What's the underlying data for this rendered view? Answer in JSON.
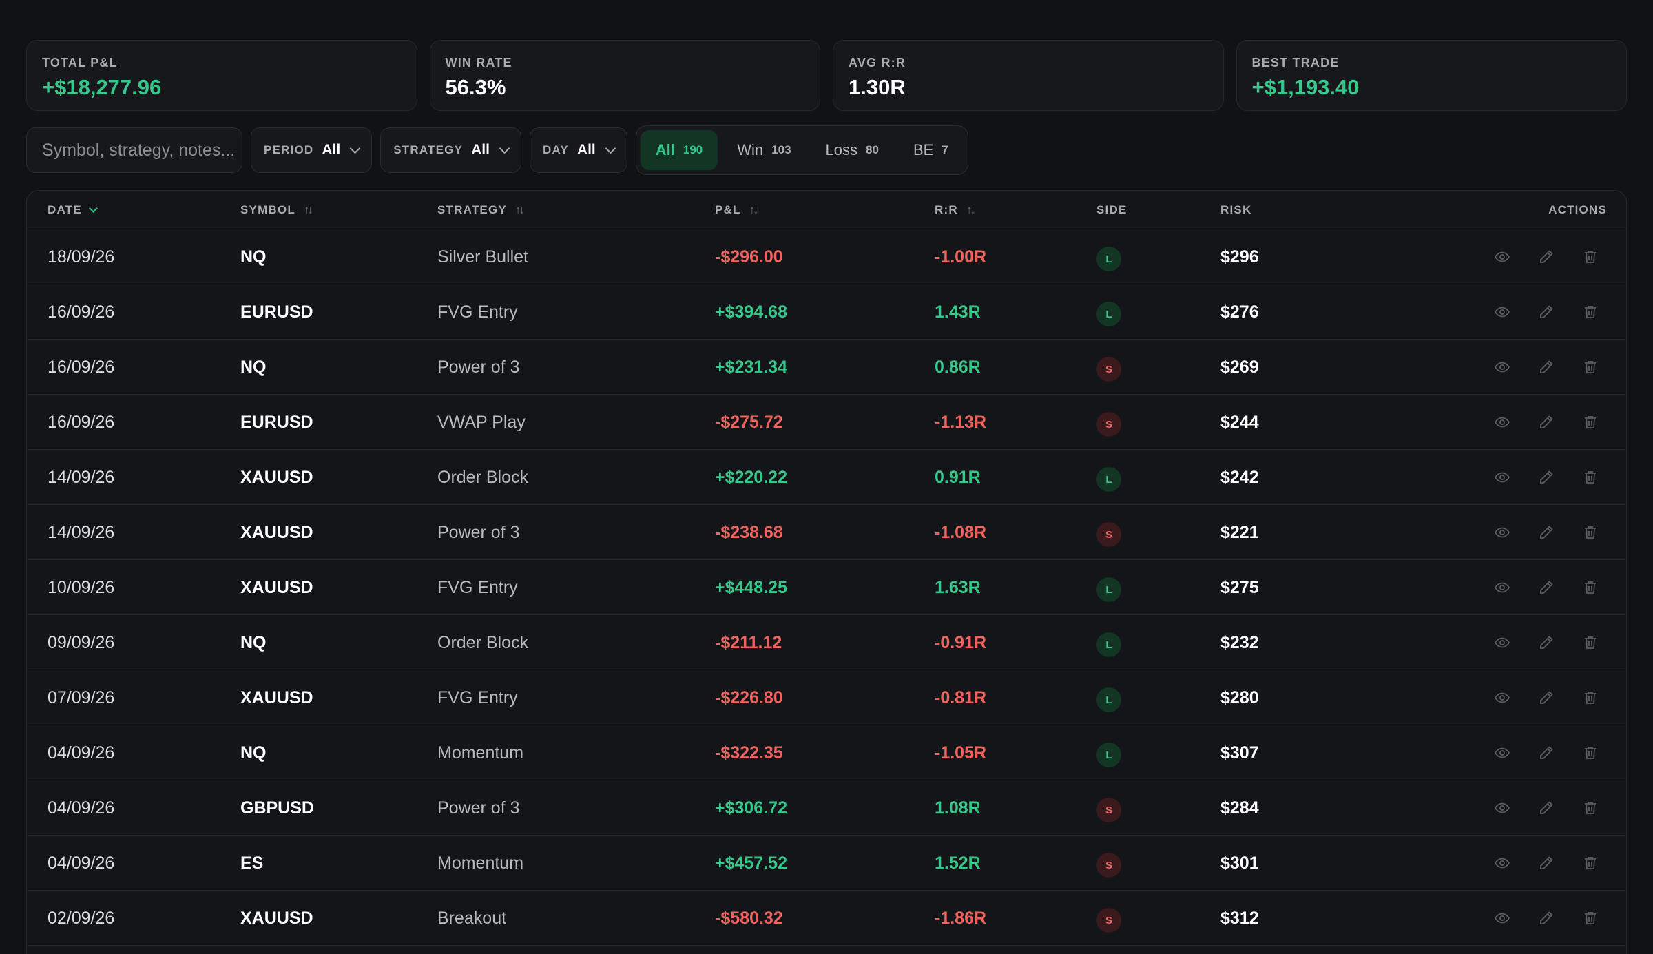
{
  "stats": [
    {
      "label": "TOTAL P&L",
      "value": "+$18,277.96",
      "tone": "pos"
    },
    {
      "label": "WIN RATE",
      "value": "56.3%",
      "tone": "neutral"
    },
    {
      "label": "AVG R:R",
      "value": "1.30R",
      "tone": "neutral"
    },
    {
      "label": "BEST TRADE",
      "value": "+$1,193.40",
      "tone": "pos"
    }
  ],
  "filters": {
    "search_placeholder": "Symbol, strategy, notes...",
    "period": {
      "label": "PERIOD",
      "value": "All"
    },
    "strategy": {
      "label": "STRATEGY",
      "value": "All"
    },
    "day": {
      "label": "DAY",
      "value": "All"
    },
    "outcome": [
      {
        "label": "All",
        "count": "190",
        "active": true
      },
      {
        "label": "Win",
        "count": "103",
        "active": false
      },
      {
        "label": "Loss",
        "count": "80",
        "active": false
      },
      {
        "label": "BE",
        "count": "7",
        "active": false
      }
    ]
  },
  "table": {
    "headers": {
      "date": "DATE",
      "symbol": "SYMBOL",
      "strategy": "STRATEGY",
      "pnl": "P&L",
      "rr": "R:R",
      "side": "SIDE",
      "risk": "RISK",
      "actions": "ACTIONS"
    },
    "rows": [
      {
        "date": "18/09/26",
        "symbol": "NQ",
        "strategy": "Silver Bullet",
        "pnl": "-$296.00",
        "rr": "-1.00R",
        "side": "L",
        "risk": "$296"
      },
      {
        "date": "16/09/26",
        "symbol": "EURUSD",
        "strategy": "FVG Entry",
        "pnl": "+$394.68",
        "rr": "1.43R",
        "side": "L",
        "risk": "$276"
      },
      {
        "date": "16/09/26",
        "symbol": "NQ",
        "strategy": "Power of 3",
        "pnl": "+$231.34",
        "rr": "0.86R",
        "side": "S",
        "risk": "$269"
      },
      {
        "date": "16/09/26",
        "symbol": "EURUSD",
        "strategy": "VWAP Play",
        "pnl": "-$275.72",
        "rr": "-1.13R",
        "side": "S",
        "risk": "$244"
      },
      {
        "date": "14/09/26",
        "symbol": "XAUUSD",
        "strategy": "Order Block",
        "pnl": "+$220.22",
        "rr": "0.91R",
        "side": "L",
        "risk": "$242"
      },
      {
        "date": "14/09/26",
        "symbol": "XAUUSD",
        "strategy": "Power of 3",
        "pnl": "-$238.68",
        "rr": "-1.08R",
        "side": "S",
        "risk": "$221"
      },
      {
        "date": "10/09/26",
        "symbol": "XAUUSD",
        "strategy": "FVG Entry",
        "pnl": "+$448.25",
        "rr": "1.63R",
        "side": "L",
        "risk": "$275"
      },
      {
        "date": "09/09/26",
        "symbol": "NQ",
        "strategy": "Order Block",
        "pnl": "-$211.12",
        "rr": "-0.91R",
        "side": "L",
        "risk": "$232"
      },
      {
        "date": "07/09/26",
        "symbol": "XAUUSD",
        "strategy": "FVG Entry",
        "pnl": "-$226.80",
        "rr": "-0.81R",
        "side": "L",
        "risk": "$280"
      },
      {
        "date": "04/09/26",
        "symbol": "NQ",
        "strategy": "Momentum",
        "pnl": "-$322.35",
        "rr": "-1.05R",
        "side": "L",
        "risk": "$307"
      },
      {
        "date": "04/09/26",
        "symbol": "GBPUSD",
        "strategy": "Power of 3",
        "pnl": "+$306.72",
        "rr": "1.08R",
        "side": "S",
        "risk": "$284"
      },
      {
        "date": "04/09/26",
        "symbol": "ES",
        "strategy": "Momentum",
        "pnl": "+$457.52",
        "rr": "1.52R",
        "side": "S",
        "risk": "$301"
      },
      {
        "date": "02/09/26",
        "symbol": "XAUUSD",
        "strategy": "Breakout",
        "pnl": "-$580.32",
        "rr": "-1.86R",
        "side": "S",
        "risk": "$312"
      }
    ]
  },
  "colors": {
    "positive": "#34c98a",
    "negative": "#f0625e",
    "background": "#111214"
  },
  "icons": {
    "view": "eye-icon",
    "edit": "pencil-icon",
    "delete": "trash-icon"
  }
}
